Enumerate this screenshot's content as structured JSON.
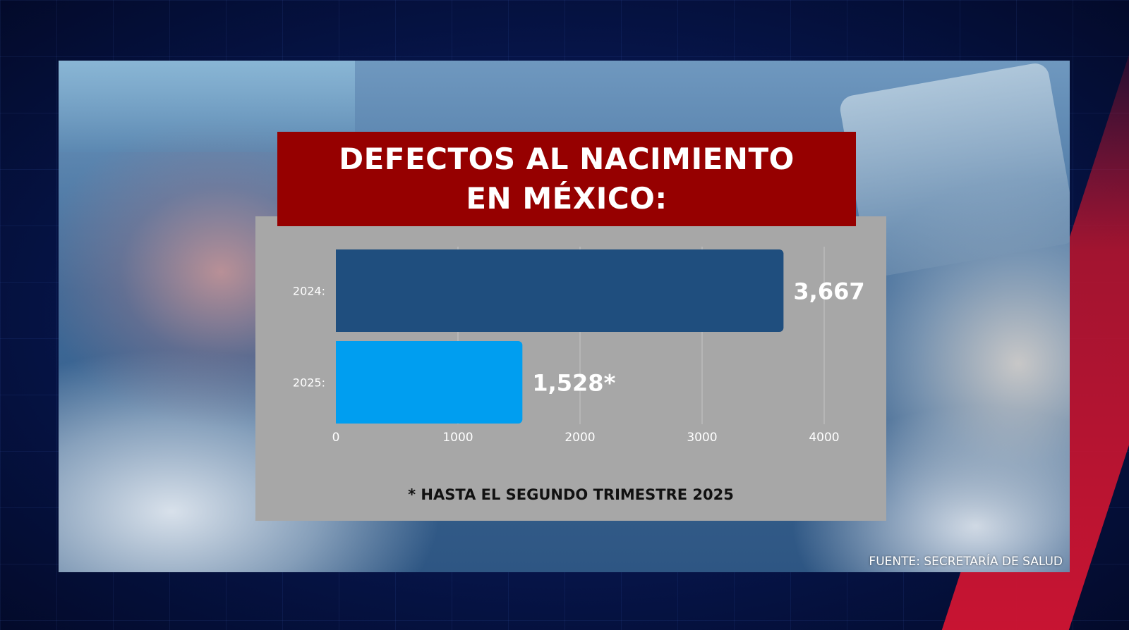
{
  "title_lines": [
    "DEFECTOS AL NACIMIENTO",
    "EN MÉXICO:"
  ],
  "footnote": "* HASTA EL SEGUNDO TRIMESTRE 2025",
  "source": "FUENTE: SECRETARÍA DE SALUD",
  "colors": {
    "title_bg": "#960000",
    "panel_bg": "#a7a7a7",
    "bar_2024": "#1f4e7e",
    "bar_2025": "#009ef0"
  },
  "chart_data": {
    "type": "bar",
    "orientation": "horizontal",
    "title": "DEFECTOS AL NACIMIENTO EN MÉXICO:",
    "categories": [
      "2024:",
      "2025:"
    ],
    "values": [
      3667,
      1528
    ],
    "value_labels": [
      "3,667",
      "1,528*"
    ],
    "xlim": [
      0,
      4000
    ],
    "x_ticks": [
      0,
      1000,
      2000,
      3000,
      4000
    ],
    "grid": true,
    "legend": "none"
  }
}
